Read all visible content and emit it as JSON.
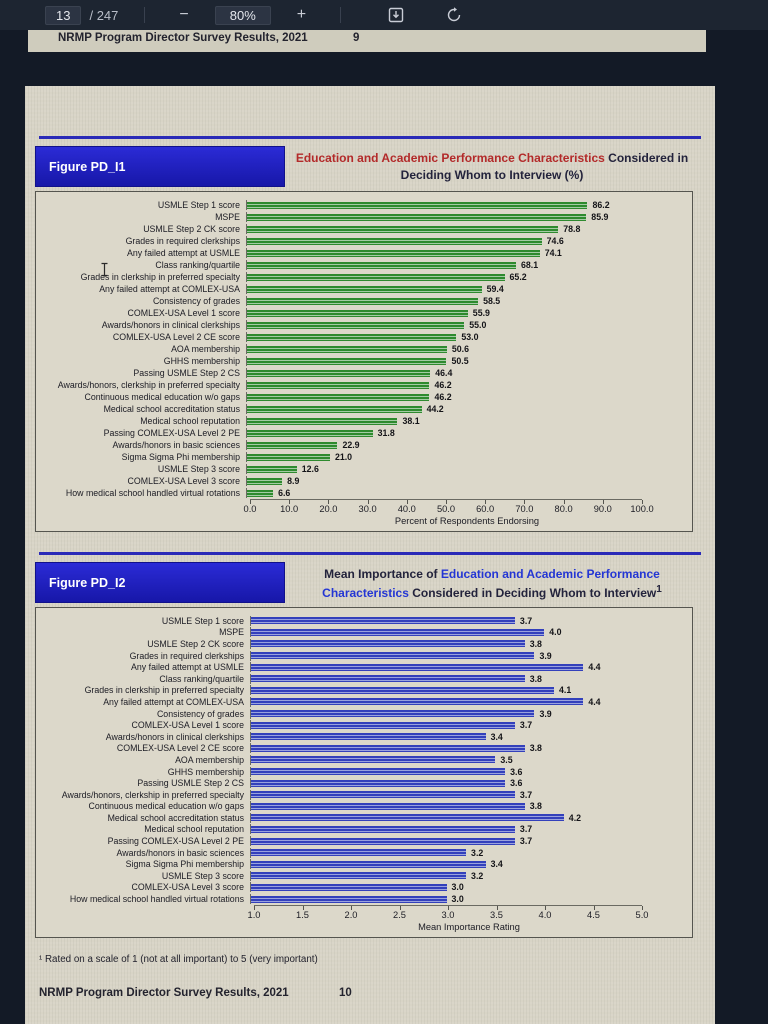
{
  "toolbar": {
    "page_number": "13",
    "page_count": "/ 247",
    "zoom_out_label": "−",
    "zoom_level": "80%",
    "zoom_in_label": "+"
  },
  "previous_page": {
    "footer_left": "NRMP Program Director Survey Results, 2021",
    "footer_page": "9"
  },
  "figure1": {
    "label": "Figure PD_I1",
    "title_highlight": "Education and Academic Performance Characteristics",
    "title_rest": " Considered in Deciding Whom to Interview (%)"
  },
  "figure2": {
    "label": "Figure PD_I2",
    "title_pre": "Mean Importance of ",
    "title_highlight": "Education and Academic Performance Characteristics",
    "title_post": " Considered in Deciding Whom to Interview",
    "title_superscript": "1"
  },
  "page": {
    "footnote": "¹ Rated on a scale of 1 (not at all important) to 5 (very important)",
    "footer_left": "NRMP Program Director Survey Results, 2021",
    "footer_page": "10"
  },
  "colors": {
    "green_bar": "#2e8a2e",
    "green_bar_stripe": "#a4cba4",
    "blue_bar": "#3340bb",
    "blue_bar_stripe": "#9aa2dd",
    "figure_label_bg": "#1e1ec0",
    "title_red": "#b32a2a",
    "title_blue": "#2436d4"
  },
  "chart_data": [
    {
      "type": "bar",
      "orientation": "horizontal",
      "title": "Education and Academic Performance Characteristics Considered in Deciding Whom to Interview (%)",
      "xlabel": "Percent of Respondents Endorsing",
      "xlim": [
        0,
        100
      ],
      "xticks": [
        "0.0",
        "10.0",
        "20.0",
        "30.0",
        "40.0",
        "50.0",
        "60.0",
        "70.0",
        "80.0",
        "90.0",
        "100.0"
      ],
      "grid": false,
      "legend": "none",
      "bar_color": "#2e8a2e",
      "bar_stripe": "#a4cba4",
      "categories": [
        "USMLE Step 1 score",
        "MSPE",
        "USMLE Step 2 CK score",
        "Grades in required clerkships",
        "Any failed attempt at USMLE",
        "Class ranking/quartile",
        "Grades in clerkship in preferred specialty",
        "Any failed attempt at COMLEX-USA",
        "Consistency of grades",
        "COMLEX-USA Level 1 score",
        "Awards/honors in clinical clerkships",
        "COMLEX-USA Level 2 CE score",
        "AOA membership",
        "GHHS membership",
        "Passing USMLE Step 2 CS",
        "Awards/honors, clerkship in preferred specialty",
        "Continuous medical education w/o gaps",
        "Medical school accreditation status",
        "Medical school reputation",
        "Passing COMLEX-USA Level 2 PE",
        "Awards/honors in basic sciences",
        "Sigma Sigma Phi membership",
        "USMLE Step 3 score",
        "COMLEX-USA Level 3 score",
        "How medical school handled virtual rotations"
      ],
      "values": [
        86.2,
        85.9,
        78.8,
        74.6,
        74.1,
        68.1,
        65.2,
        59.4,
        58.5,
        55.9,
        55.0,
        53.0,
        50.6,
        50.5,
        46.4,
        46.2,
        46.2,
        44.2,
        38.1,
        31.8,
        22.9,
        21.0,
        12.6,
        8.9,
        6.6
      ]
    },
    {
      "type": "bar",
      "orientation": "horizontal",
      "title": "Mean Importance of Education and Academic Performance Characteristics Considered in Deciding Whom to Interview",
      "xlabel": "Mean Importance Rating",
      "xlim": [
        1.0,
        5.0
      ],
      "xticks": [
        "1.0",
        "1.5",
        "2.0",
        "2.5",
        "3.0",
        "3.5",
        "4.0",
        "4.5",
        "5.0"
      ],
      "grid": false,
      "legend": "none",
      "bar_color": "#3340bb",
      "bar_stripe": "#9aa2dd",
      "categories": [
        "USMLE Step 1 score",
        "MSPE",
        "USMLE Step 2 CK score",
        "Grades in required clerkships",
        "Any failed attempt at USMLE",
        "Class ranking/quartile",
        "Grades in clerkship in preferred specialty",
        "Any failed attempt at COMLEX-USA",
        "Consistency of grades",
        "COMLEX-USA Level 1 score",
        "Awards/honors in clinical clerkships",
        "COMLEX-USA Level 2 CE score",
        "AOA membership",
        "GHHS membership",
        "Passing USMLE Step 2 CS",
        "Awards/honors, clerkship in preferred specialty",
        "Continuous medical education w/o gaps",
        "Medical school accreditation status",
        "Medical school reputation",
        "Passing COMLEX-USA Level 2 PE",
        "Awards/honors in basic sciences",
        "Sigma Sigma Phi membership",
        "USMLE Step 3 score",
        "COMLEX-USA Level 3 score",
        "How medical school handled virtual rotations"
      ],
      "values": [
        3.7,
        4.0,
        3.8,
        3.9,
        4.4,
        3.8,
        4.1,
        4.4,
        3.9,
        3.7,
        3.4,
        3.8,
        3.5,
        3.6,
        3.6,
        3.7,
        3.8,
        4.2,
        3.7,
        3.7,
        3.2,
        3.4,
        3.2,
        3.0,
        3.0
      ]
    }
  ]
}
